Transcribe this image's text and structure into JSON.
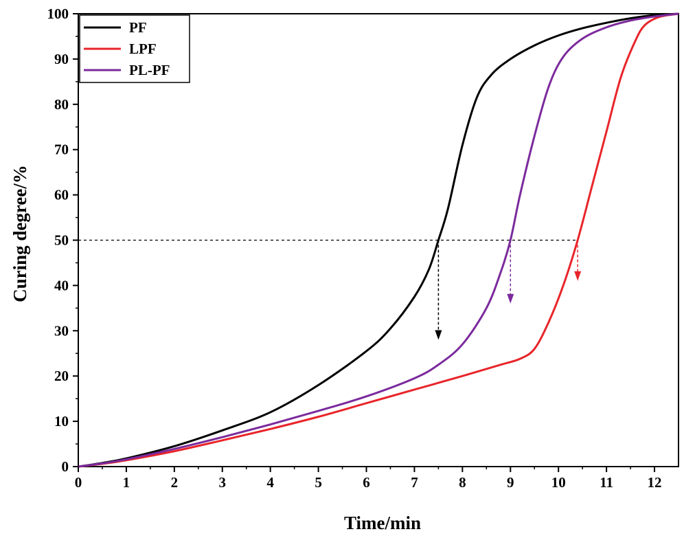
{
  "chart_data": {
    "type": "line",
    "title": "",
    "xlabel": "Time/min",
    "ylabel": "Curing degree/%",
    "xlim": [
      0,
      12.5
    ],
    "ylim": [
      0,
      100
    ],
    "xticks": [
      "0",
      "1",
      "2",
      "3",
      "4",
      "5",
      "6",
      "7",
      "8",
      "9",
      "10",
      "11",
      "12"
    ],
    "yticks": [
      "0",
      "10",
      "20",
      "30",
      "40",
      "50",
      "60",
      "70",
      "80",
      "90",
      "100"
    ],
    "grid": false,
    "legend_position": "top-left",
    "series": [
      {
        "name": "PF",
        "color": "#000000",
        "x": [
          0,
          0.5,
          1,
          2,
          3,
          4,
          5,
          6,
          6.5,
          7,
          7.3,
          7.5,
          7.7,
          8,
          8.3,
          8.6,
          9,
          9.5,
          10,
          10.5,
          11,
          11.5,
          12,
          12.5
        ],
        "y": [
          0,
          0.8,
          1.8,
          4.5,
          8,
          12,
          18,
          25.5,
          30.5,
          37.5,
          43.5,
          50,
          57,
          71,
          81.5,
          86.5,
          90,
          93,
          95.2,
          96.8,
          98,
          99,
          99.7,
          100
        ]
      },
      {
        "name": "LPF",
        "color": "#e8252a",
        "x": [
          0,
          0.5,
          1,
          2,
          3,
          4,
          5,
          6,
          7,
          8,
          8.8,
          9.2,
          9.5,
          9.8,
          10.1,
          10.4,
          10.7,
          11,
          11.3,
          11.6,
          11.8,
          12.1,
          12.5
        ],
        "y": [
          0,
          0.6,
          1.4,
          3.4,
          5.8,
          8.3,
          11,
          14,
          17,
          20,
          22.5,
          23.8,
          26,
          32,
          40,
          50,
          62,
          74,
          86,
          94,
          97.5,
          99.3,
          100
        ]
      },
      {
        "name": "PL-PF",
        "color": "#7b2a9c",
        "x": [
          0,
          0.5,
          1,
          2,
          3,
          4,
          5,
          6,
          7,
          7.5,
          8,
          8.5,
          8.8,
          9,
          9.2,
          9.5,
          9.8,
          10.1,
          10.5,
          11,
          11.5,
          12,
          12.5
        ],
        "y": [
          0,
          0.7,
          1.6,
          3.9,
          6.5,
          9.3,
          12.3,
          15.5,
          19.5,
          22.5,
          27,
          35,
          43,
          50,
          60,
          73,
          84,
          90.5,
          94.5,
          97,
          98.5,
          99.4,
          100
        ]
      }
    ],
    "reference_line": {
      "y": 50,
      "x_end": 10.4,
      "style": "dashed"
    },
    "annotations": [
      {
        "type": "arrow",
        "x": 7.5,
        "y_from": 50,
        "y_to": 28,
        "color": "#000000"
      },
      {
        "type": "arrow",
        "x": 9.0,
        "y_from": 50,
        "y_to": 36,
        "color": "#7b2a9c"
      },
      {
        "type": "arrow",
        "x": 10.4,
        "y_from": 50,
        "y_to": 41,
        "color": "#e8252a"
      }
    ]
  }
}
